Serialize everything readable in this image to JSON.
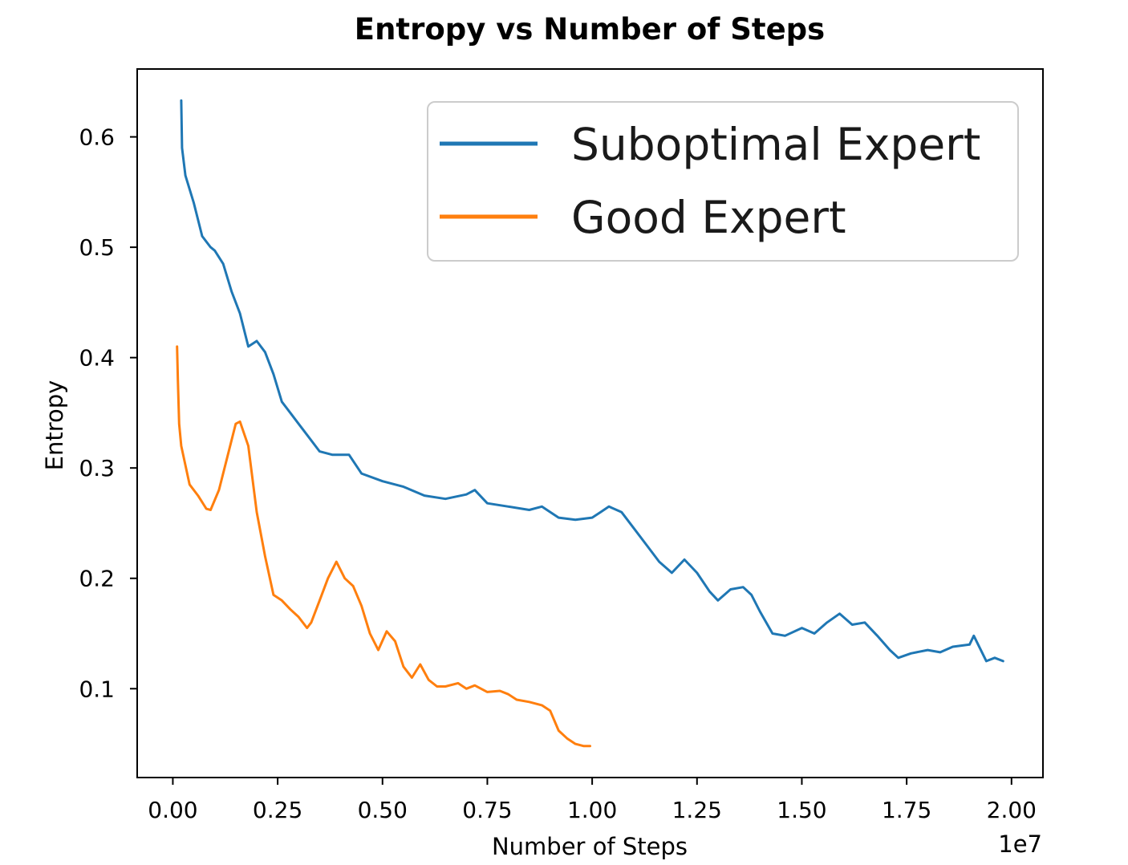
{
  "chart_data": {
    "type": "line",
    "title": "Entropy vs Number of Steps",
    "xlabel": "Number of Steps",
    "ylabel": "Entropy",
    "x_multiplier_label": "1e7",
    "xlim": [
      -0.085,
      2.075
    ],
    "ylim": [
      0.0195,
      0.6615
    ],
    "xticks": [
      0.0,
      0.25,
      0.5,
      0.75,
      1.0,
      1.25,
      1.5,
      1.75,
      2.0
    ],
    "xtick_labels": [
      "0.00",
      "0.25",
      "0.50",
      "0.75",
      "1.00",
      "1.25",
      "1.50",
      "1.75",
      "2.00"
    ],
    "yticks": [
      0.1,
      0.2,
      0.3,
      0.4,
      0.5,
      0.6
    ],
    "ytick_labels": [
      "0.1",
      "0.2",
      "0.3",
      "0.4",
      "0.5",
      "0.6"
    ],
    "grid": false,
    "legend_position": "top-right",
    "series": [
      {
        "name": "Suboptimal Expert",
        "color": "#1f77b4",
        "x": [
          0.02,
          0.022,
          0.03,
          0.05,
          0.07,
          0.09,
          0.1,
          0.12,
          0.14,
          0.16,
          0.18,
          0.2,
          0.22,
          0.24,
          0.26,
          0.28,
          0.3,
          0.32,
          0.35,
          0.38,
          0.42,
          0.45,
          0.5,
          0.55,
          0.6,
          0.65,
          0.7,
          0.72,
          0.75,
          0.8,
          0.85,
          0.88,
          0.92,
          0.96,
          1.0,
          1.02,
          1.04,
          1.07,
          1.1,
          1.13,
          1.16,
          1.19,
          1.22,
          1.25,
          1.28,
          1.3,
          1.33,
          1.36,
          1.38,
          1.4,
          1.43,
          1.46,
          1.5,
          1.53,
          1.56,
          1.59,
          1.62,
          1.65,
          1.68,
          1.71,
          1.73,
          1.76,
          1.8,
          1.83,
          1.86,
          1.9,
          1.91,
          1.94,
          1.96,
          1.98
        ],
        "y": [
          0.633,
          0.59,
          0.565,
          0.54,
          0.51,
          0.5,
          0.497,
          0.485,
          0.46,
          0.44,
          0.41,
          0.415,
          0.405,
          0.385,
          0.36,
          0.35,
          0.34,
          0.33,
          0.315,
          0.312,
          0.312,
          0.295,
          0.288,
          0.283,
          0.275,
          0.272,
          0.276,
          0.28,
          0.268,
          0.265,
          0.262,
          0.265,
          0.255,
          0.253,
          0.255,
          0.26,
          0.265,
          0.26,
          0.245,
          0.23,
          0.215,
          0.205,
          0.217,
          0.205,
          0.188,
          0.18,
          0.19,
          0.192,
          0.185,
          0.17,
          0.15,
          0.148,
          0.155,
          0.15,
          0.16,
          0.168,
          0.158,
          0.16,
          0.148,
          0.135,
          0.128,
          0.132,
          0.135,
          0.133,
          0.138,
          0.14,
          0.148,
          0.125,
          0.128,
          0.125
        ]
      },
      {
        "name": "Good Expert",
        "color": "#ff7f0e",
        "x": [
          0.01,
          0.012,
          0.015,
          0.02,
          0.04,
          0.06,
          0.08,
          0.09,
          0.11,
          0.13,
          0.15,
          0.16,
          0.18,
          0.2,
          0.22,
          0.24,
          0.26,
          0.28,
          0.3,
          0.32,
          0.33,
          0.35,
          0.37,
          0.39,
          0.41,
          0.43,
          0.45,
          0.47,
          0.49,
          0.51,
          0.53,
          0.55,
          0.57,
          0.59,
          0.61,
          0.63,
          0.65,
          0.68,
          0.7,
          0.72,
          0.75,
          0.78,
          0.8,
          0.82,
          0.85,
          0.88,
          0.9,
          0.92,
          0.94,
          0.96,
          0.98,
          0.995
        ],
        "y": [
          0.41,
          0.38,
          0.34,
          0.32,
          0.285,
          0.275,
          0.263,
          0.262,
          0.28,
          0.31,
          0.34,
          0.342,
          0.32,
          0.26,
          0.22,
          0.185,
          0.18,
          0.172,
          0.165,
          0.155,
          0.16,
          0.18,
          0.2,
          0.215,
          0.2,
          0.193,
          0.175,
          0.15,
          0.135,
          0.152,
          0.143,
          0.12,
          0.11,
          0.122,
          0.108,
          0.102,
          0.102,
          0.105,
          0.1,
          0.103,
          0.097,
          0.098,
          0.095,
          0.09,
          0.088,
          0.085,
          0.08,
          0.062,
          0.055,
          0.05,
          0.048,
          0.048
        ]
      }
    ]
  }
}
